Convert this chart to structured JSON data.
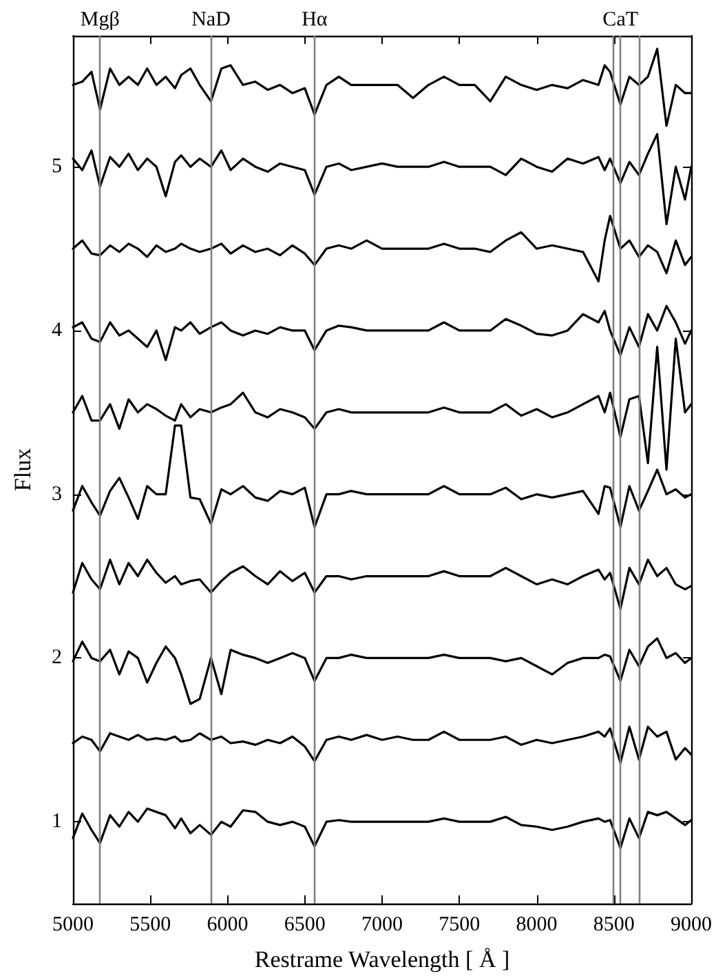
{
  "chart_data": {
    "type": "line",
    "xlabel": "Restrame Wavelength [ Å ]",
    "ylabel": "Flux",
    "xlim": [
      5000,
      9000
    ],
    "xticks": [
      5000,
      5500,
      6000,
      6500,
      7000,
      7500,
      8000,
      8500,
      9000
    ],
    "ylim": [
      0.5,
      5.8
    ],
    "yticks": [
      1,
      2,
      3,
      4,
      5
    ],
    "grid": false,
    "line_style": "solid",
    "x": [
      5000,
      5060,
      5120,
      5175,
      5240,
      5300,
      5360,
      5420,
      5480,
      5540,
      5600,
      5660,
      5700,
      5760,
      5820,
      5893,
      5960,
      6020,
      6100,
      6180,
      6260,
      6340,
      6420,
      6500,
      6563,
      6640,
      6720,
      6800,
      6900,
      7000,
      7100,
      7200,
      7300,
      7400,
      7500,
      7600,
      7700,
      7800,
      7900,
      8000,
      8100,
      8200,
      8300,
      8400,
      8440,
      8475,
      8542,
      8600,
      8662,
      8720,
      8780,
      8840,
      8900,
      8960,
      9000
    ],
    "series": [
      {
        "color": "#000000",
        "values": [
          0.9,
          1.05,
          0.95,
          0.87,
          1.04,
          0.97,
          1.06,
          1.0,
          1.08,
          1.06,
          1.04,
          0.96,
          1.02,
          0.93,
          0.98,
          0.92,
          1.0,
          0.97,
          1.07,
          1.06,
          1.0,
          0.98,
          1.0,
          0.97,
          0.85,
          1.0,
          1.01,
          1.0,
          1.0,
          1.0,
          1.0,
          1.0,
          1.0,
          1.02,
          1.0,
          1.0,
          1.0,
          1.03,
          0.98,
          0.97,
          0.95,
          0.97,
          1.0,
          1.02,
          1.0,
          1.01,
          0.84,
          1.02,
          0.9,
          1.06,
          1.04,
          1.06,
          1.02,
          0.98,
          1.01
        ]
      },
      {
        "color": "#000000",
        "values": [
          1.48,
          1.52,
          1.5,
          1.43,
          1.54,
          1.52,
          1.5,
          1.53,
          1.5,
          1.51,
          1.5,
          1.52,
          1.49,
          1.5,
          1.54,
          1.5,
          1.52,
          1.48,
          1.49,
          1.47,
          1.5,
          1.48,
          1.52,
          1.46,
          1.37,
          1.5,
          1.52,
          1.5,
          1.53,
          1.5,
          1.52,
          1.5,
          1.5,
          1.55,
          1.5,
          1.5,
          1.5,
          1.52,
          1.47,
          1.5,
          1.48,
          1.5,
          1.52,
          1.55,
          1.52,
          1.57,
          1.36,
          1.58,
          1.38,
          1.58,
          1.52,
          1.55,
          1.38,
          1.45,
          1.41
        ]
      },
      {
        "color": "#000000",
        "values": [
          1.98,
          2.1,
          2.0,
          1.98,
          2.05,
          1.9,
          2.04,
          2.0,
          1.85,
          1.97,
          2.07,
          2.0,
          1.9,
          1.72,
          1.75,
          2.0,
          1.78,
          2.05,
          2.02,
          2.0,
          1.97,
          2.0,
          2.03,
          2.0,
          1.86,
          2.0,
          2.0,
          2.02,
          2.0,
          2.0,
          2.0,
          2.0,
          2.0,
          2.02,
          2.0,
          2.0,
          2.0,
          1.98,
          2.0,
          1.95,
          1.9,
          1.97,
          2.0,
          2.0,
          2.02,
          2.01,
          1.86,
          2.05,
          1.95,
          2.07,
          2.12,
          2.0,
          2.03,
          1.97,
          2.0
        ]
      },
      {
        "color": "#000000",
        "values": [
          2.4,
          2.58,
          2.48,
          2.42,
          2.6,
          2.45,
          2.58,
          2.5,
          2.6,
          2.52,
          2.46,
          2.5,
          2.45,
          2.47,
          2.48,
          2.4,
          2.47,
          2.52,
          2.56,
          2.5,
          2.45,
          2.53,
          2.47,
          2.52,
          2.4,
          2.5,
          2.5,
          2.48,
          2.5,
          2.5,
          2.5,
          2.5,
          2.5,
          2.53,
          2.5,
          2.5,
          2.5,
          2.55,
          2.5,
          2.45,
          2.48,
          2.45,
          2.5,
          2.54,
          2.48,
          2.52,
          2.3,
          2.55,
          2.45,
          2.6,
          2.5,
          2.55,
          2.45,
          2.42,
          2.44
        ]
      },
      {
        "color": "#000000",
        "values": [
          2.9,
          3.05,
          2.95,
          2.87,
          3.02,
          3.1,
          2.98,
          2.85,
          3.05,
          3.0,
          3.0,
          3.42,
          3.42,
          2.98,
          2.97,
          2.82,
          3.03,
          3.0,
          3.05,
          2.98,
          2.96,
          3.02,
          3.0,
          3.04,
          2.8,
          3.0,
          3.0,
          3.02,
          3.0,
          3.0,
          3.0,
          3.0,
          3.0,
          3.05,
          3.0,
          3.0,
          3.0,
          3.04,
          2.97,
          3.0,
          2.98,
          3.0,
          3.02,
          2.88,
          3.05,
          3.04,
          2.8,
          3.05,
          2.9,
          3.02,
          3.15,
          3.0,
          3.03,
          2.98,
          3.0
        ]
      },
      {
        "color": "#000000",
        "values": [
          3.5,
          3.6,
          3.45,
          3.45,
          3.55,
          3.4,
          3.58,
          3.5,
          3.55,
          3.52,
          3.48,
          3.45,
          3.55,
          3.47,
          3.52,
          3.5,
          3.53,
          3.55,
          3.62,
          3.5,
          3.47,
          3.52,
          3.5,
          3.47,
          3.4,
          3.5,
          3.52,
          3.5,
          3.5,
          3.5,
          3.5,
          3.5,
          3.5,
          3.53,
          3.5,
          3.5,
          3.5,
          3.55,
          3.48,
          3.52,
          3.47,
          3.5,
          3.55,
          3.6,
          3.5,
          3.62,
          3.35,
          3.58,
          3.6,
          3.19,
          3.9,
          3.15,
          3.95,
          3.5,
          3.55
        ]
      },
      {
        "color": "#000000",
        "values": [
          4.02,
          4.05,
          3.95,
          3.93,
          4.05,
          3.97,
          4.0,
          3.95,
          3.9,
          4.0,
          3.82,
          4.02,
          4.0,
          4.05,
          3.98,
          4.02,
          4.05,
          4.0,
          3.97,
          4.0,
          3.98,
          4.02,
          4.0,
          4.0,
          3.88,
          4.0,
          4.03,
          4.02,
          4.0,
          4.0,
          4.0,
          4.0,
          4.0,
          4.05,
          4.0,
          4.0,
          4.0,
          4.07,
          4.03,
          3.98,
          3.97,
          4.0,
          4.1,
          4.05,
          4.12,
          4.0,
          3.85,
          4.02,
          3.9,
          4.1,
          4.0,
          4.15,
          4.05,
          3.92,
          4.0
        ]
      },
      {
        "color": "#000000",
        "values": [
          4.5,
          4.55,
          4.47,
          4.46,
          4.52,
          4.48,
          4.53,
          4.5,
          4.45,
          4.52,
          4.48,
          4.5,
          4.53,
          4.5,
          4.48,
          4.5,
          4.53,
          4.47,
          4.52,
          4.48,
          4.5,
          4.46,
          4.52,
          4.47,
          4.4,
          4.5,
          4.52,
          4.5,
          4.55,
          4.5,
          4.5,
          4.5,
          4.5,
          4.53,
          4.5,
          4.5,
          4.48,
          4.55,
          4.6,
          4.5,
          4.52,
          4.5,
          4.48,
          4.3,
          4.55,
          4.7,
          4.5,
          4.55,
          4.45,
          4.52,
          4.48,
          4.35,
          4.55,
          4.4,
          4.45
        ]
      },
      {
        "color": "#000000",
        "values": [
          5.05,
          4.98,
          5.1,
          4.88,
          5.06,
          5.0,
          5.08,
          4.98,
          5.05,
          5.0,
          4.82,
          5.03,
          5.07,
          5.0,
          5.05,
          5.0,
          5.1,
          4.98,
          5.05,
          5.0,
          4.97,
          5.02,
          5.0,
          4.98,
          4.83,
          5.0,
          5.02,
          4.98,
          5.0,
          5.02,
          5.0,
          5.0,
          5.0,
          5.03,
          5.0,
          5.0,
          5.0,
          4.95,
          5.05,
          5.0,
          4.97,
          5.05,
          5.02,
          5.06,
          4.98,
          5.05,
          4.9,
          5.03,
          4.95,
          5.08,
          5.2,
          4.65,
          5.0,
          4.8,
          5.0
        ]
      },
      {
        "color": "#000000",
        "values": [
          5.5,
          5.52,
          5.58,
          5.35,
          5.6,
          5.5,
          5.55,
          5.5,
          5.6,
          5.5,
          5.55,
          5.48,
          5.56,
          5.6,
          5.5,
          5.4,
          5.6,
          5.62,
          5.5,
          5.52,
          5.47,
          5.5,
          5.45,
          5.48,
          5.32,
          5.5,
          5.55,
          5.5,
          5.5,
          5.5,
          5.5,
          5.42,
          5.5,
          5.55,
          5.5,
          5.5,
          5.4,
          5.55,
          5.5,
          5.47,
          5.5,
          5.48,
          5.53,
          5.5,
          5.62,
          5.58,
          5.38,
          5.55,
          5.5,
          5.55,
          5.72,
          5.25,
          5.5,
          5.45,
          5.45
        ]
      }
    ],
    "ref_lines": [
      {
        "axis": "x",
        "value": 5175,
        "label": "Mgβ",
        "color": "#808080"
      },
      {
        "axis": "x",
        "value": 5893,
        "label": "NaD",
        "color": "#808080"
      },
      {
        "axis": "x",
        "value": 6563,
        "label": "Hα",
        "color": "#808080"
      },
      {
        "axis": "x",
        "value": 8498,
        "label": null,
        "color": "#808080"
      },
      {
        "axis": "x",
        "value": 8542,
        "label": "CaT",
        "color": "#808080"
      },
      {
        "axis": "x",
        "value": 8662,
        "label": null,
        "color": "#808080"
      }
    ]
  }
}
